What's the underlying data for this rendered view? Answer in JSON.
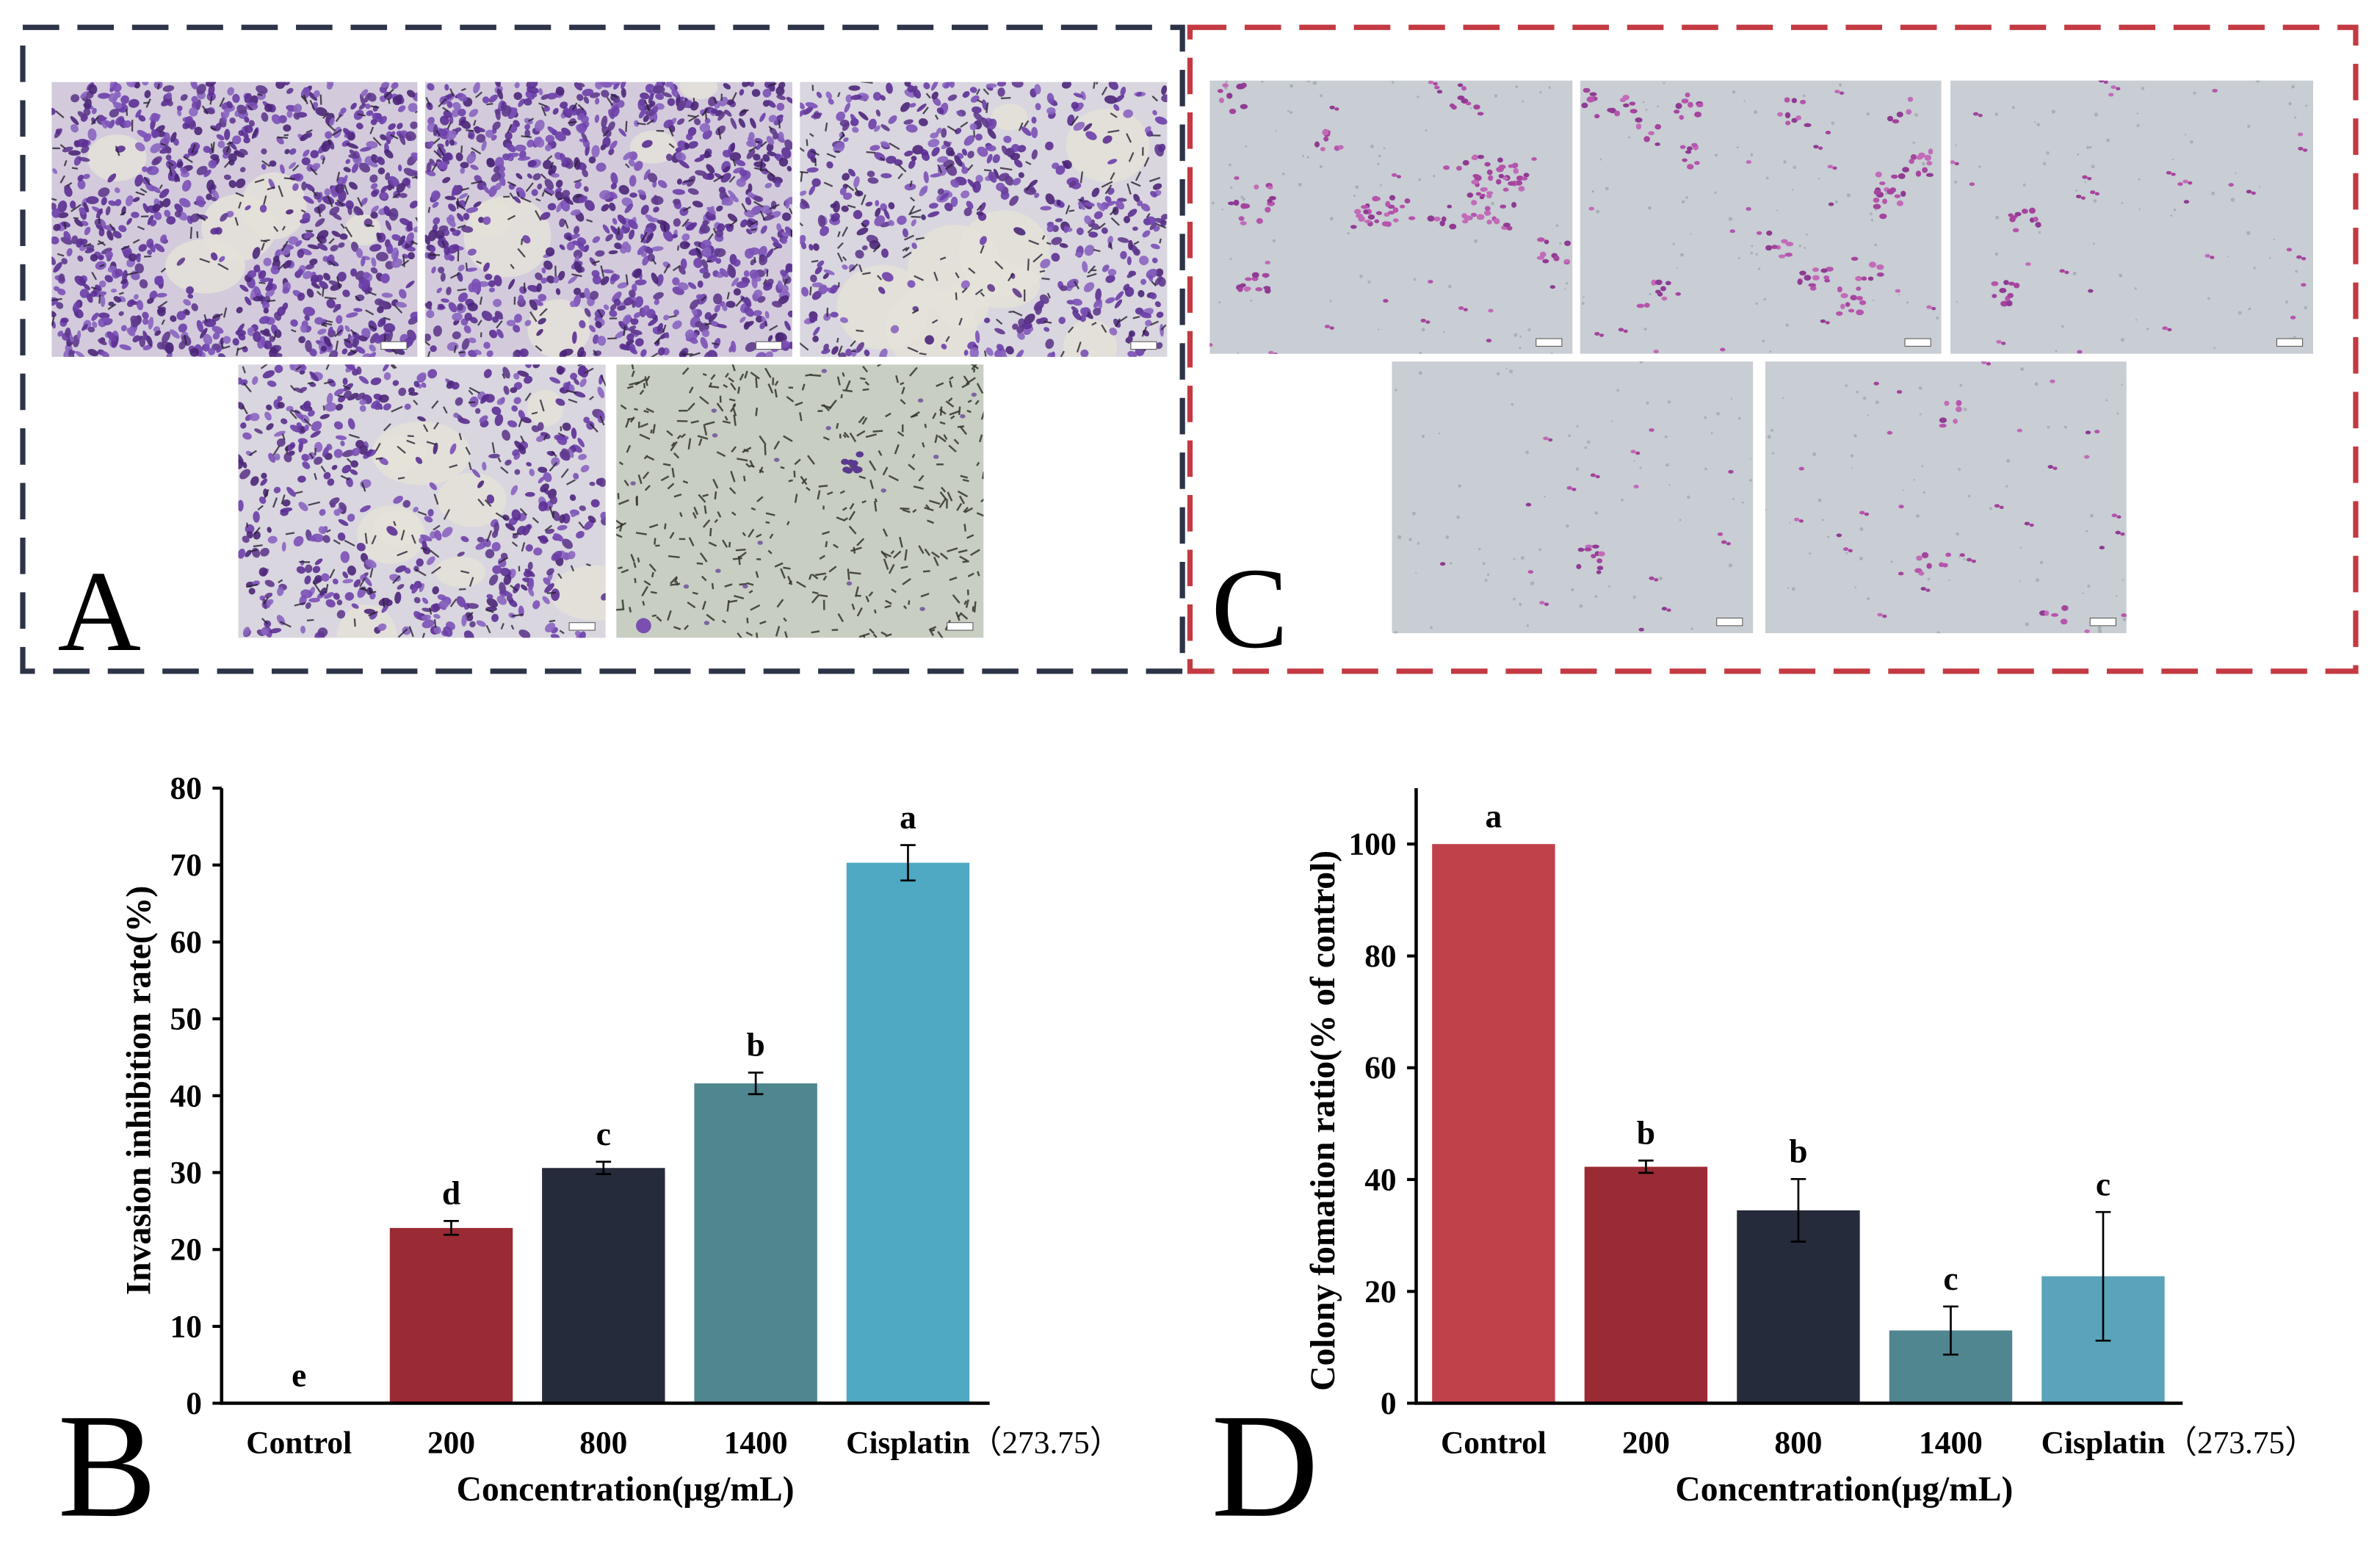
{
  "panels": {
    "a": "A",
    "c": "C"
  },
  "colors": {
    "panel_a_border": "#2d3448",
    "panel_c_border": "#c43a42",
    "axis": "#000000"
  },
  "chart_data": [
    {
      "type": "bar",
      "panel": "B",
      "categories": [
        "Control",
        "200",
        "800",
        "1400",
        "Cisplatin（273.75）"
      ],
      "values": [
        0,
        22.8,
        30.6,
        41.6,
        70.3
      ],
      "errors": [
        0,
        0.9,
        0.8,
        1.4,
        2.3
      ],
      "significance_letters": [
        "e",
        "d",
        "c",
        "b",
        "a"
      ],
      "bar_colors": [
        "#c1414b",
        "#9a2a34",
        "#262b3b",
        "#4f8690",
        "#50a9c2"
      ],
      "xlabel": "Concentration(μg/mL)",
      "ylabel": "Invasion inhibition rate(%)",
      "ylim": [
        0,
        80
      ],
      "yticks": [
        0,
        10,
        20,
        30,
        40,
        50,
        60,
        70,
        80
      ],
      "grid": false
    },
    {
      "type": "bar",
      "panel": "D",
      "categories": [
        "Control",
        "200",
        "800",
        "1400",
        "Cisplatin（273.75）"
      ],
      "values": [
        100,
        42.3,
        34.5,
        13.0,
        22.7
      ],
      "errors": [
        0,
        1.1,
        5.6,
        4.3,
        11.5
      ],
      "significance_letters": [
        "a",
        "b",
        "b",
        "c",
        "c"
      ],
      "bar_colors": [
        "#c1414b",
        "#9a2a34",
        "#262b3b",
        "#4f8690",
        "#5aa3bb"
      ],
      "xlabel": "Concentration(μg/mL)",
      "ylabel": "Colony fomation ratio(% of control)",
      "ylim": [
        0,
        110
      ],
      "yticks": [
        0,
        20,
        40,
        60,
        80,
        100
      ],
      "grid": false
    }
  ]
}
